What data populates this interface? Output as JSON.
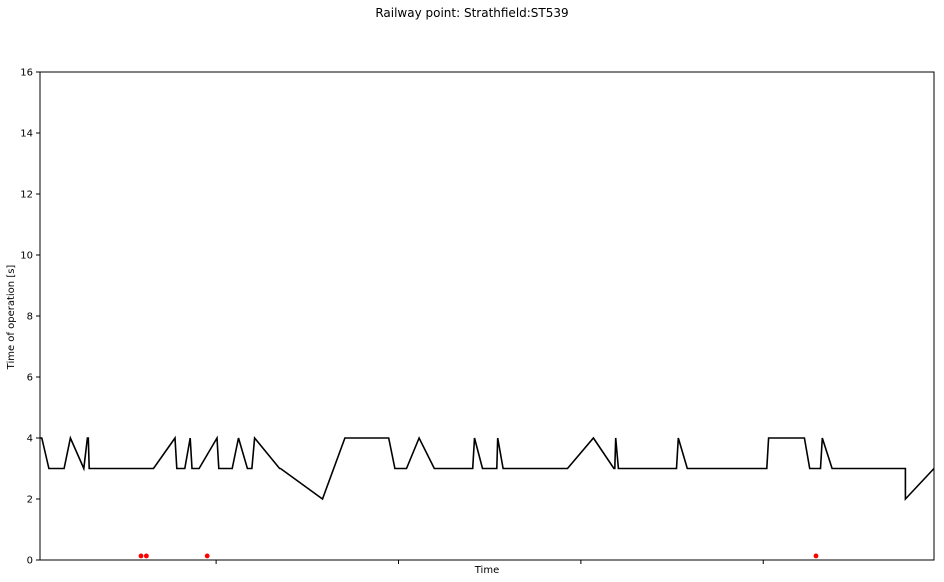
{
  "chart_data": {
    "type": "line",
    "title": "Railway point: Strathfield:ST539",
    "xlabel": "Time",
    "ylabel": "Time of operation [s]",
    "ylim": [
      0,
      16
    ],
    "yticks": [
      0,
      2,
      4,
      6,
      8,
      10,
      12,
      14,
      16
    ],
    "xlim": [
      0,
      100
    ],
    "xticks": [
      19.7,
      40.1,
      60.5,
      80.9
    ],
    "grid": false,
    "series": [
      {
        "color": "#000000",
        "x": [
          0,
          0.2,
          1.0,
          2.6,
          2.7,
          3.4,
          4.9,
          5.3,
          5.4,
          5.5,
          5.5,
          6.0,
          11.3,
          12.7,
          15.1,
          15.3,
          16.2,
          16.8,
          17.0,
          17.2,
          17.8,
          19.8,
          20.0,
          21.5,
          22.2,
          23.2,
          23.7,
          24.0,
          26.8,
          26.9,
          31.6,
          34.1,
          35.0,
          39.0,
          39.7,
          40.2,
          41.0,
          42.4,
          44.1,
          44.6,
          48.4,
          48.6,
          49.5,
          50.8,
          51.1,
          51.2,
          51.8,
          58.8,
          59.0,
          61.9,
          64.2,
          64.3,
          64.4,
          64.7,
          71.2,
          71.4,
          72.4,
          81.3,
          81.5,
          85.5,
          86.1,
          86.9,
          87.3,
          87.5,
          88.6,
          96.8,
          96.8,
          96.8,
          100
        ],
        "y": [
          4,
          4,
          3,
          3,
          3,
          4,
          3,
          4,
          4,
          3,
          3,
          3,
          3,
          3,
          4,
          3,
          3,
          4,
          3,
          3,
          3,
          4,
          3,
          3,
          4,
          3,
          3,
          4,
          3,
          3,
          2,
          4,
          4,
          4,
          3,
          3,
          3,
          4,
          3,
          3,
          3,
          4,
          3,
          3,
          3,
          4,
          3,
          3,
          3,
          4,
          3,
          3,
          4,
          3,
          3,
          4,
          3,
          3,
          4,
          4,
          3,
          3,
          3,
          4,
          3,
          3,
          3,
          2,
          3
        ]
      },
      {
        "color": "#ff0000",
        "marker": "dot",
        "x": [
          11.3,
          11.9,
          18.7,
          86.8
        ],
        "y": [
          0.1,
          0.1,
          0.1,
          0.1
        ]
      }
    ]
  }
}
